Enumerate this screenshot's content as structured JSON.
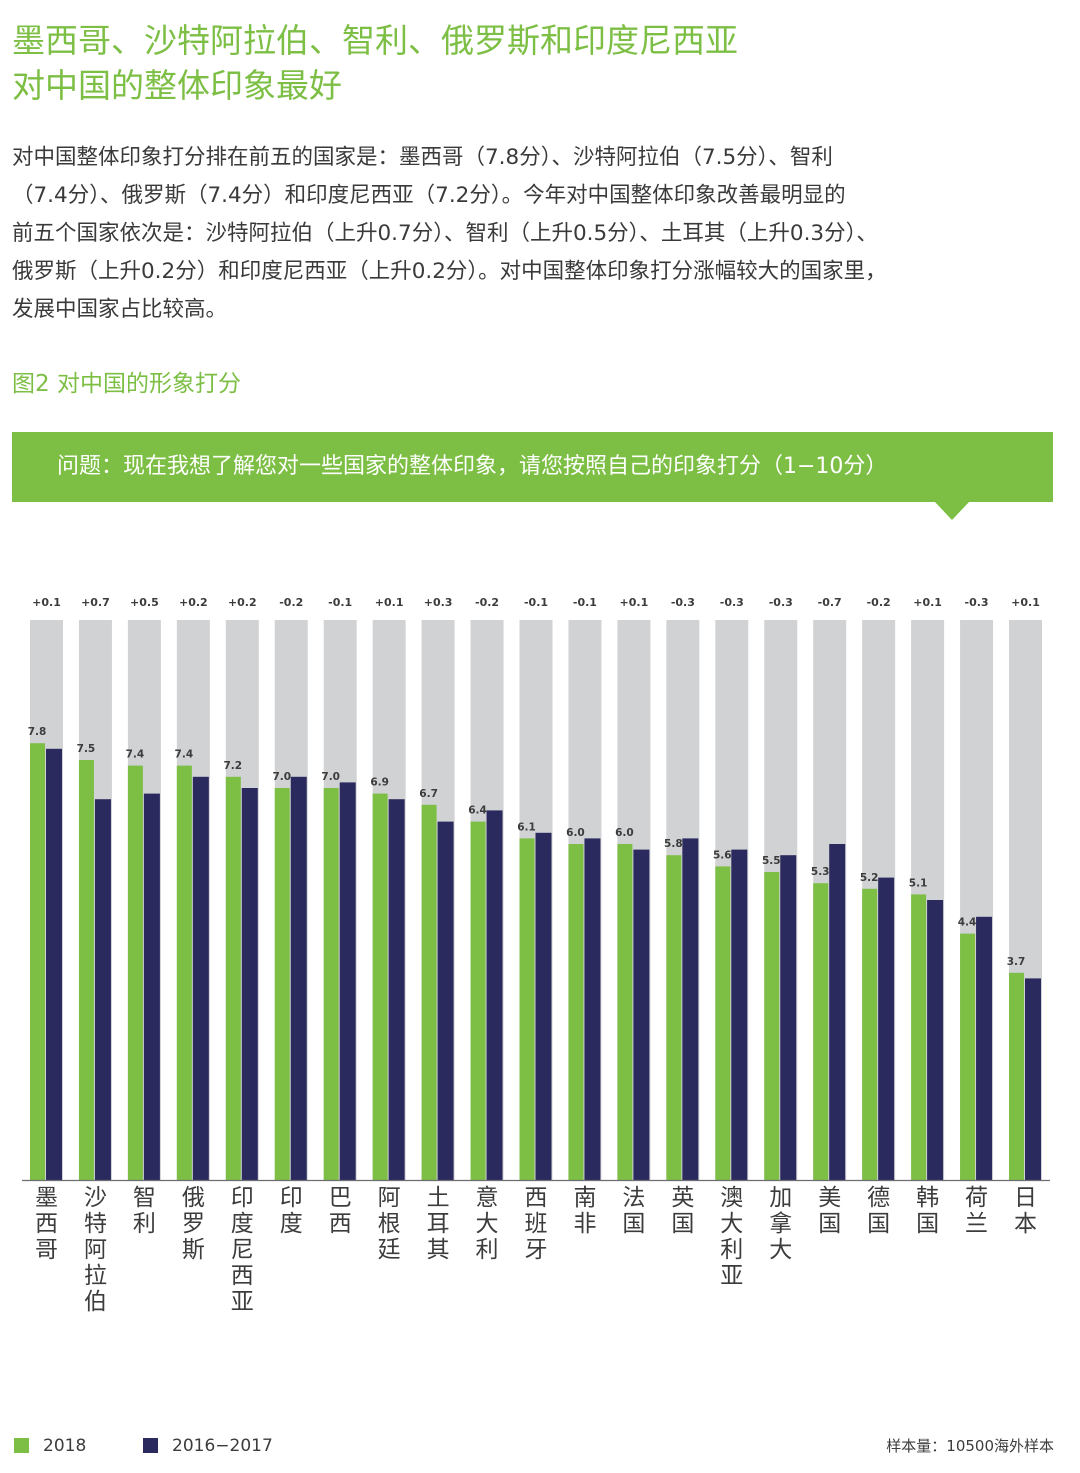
{
  "title": {
    "line1": "墨西哥、沙特阿拉伯、智利、俄罗斯和印度尼西亚",
    "line2": "对中国的整体印象最好"
  },
  "body": {
    "lines": [
      "对中国整体印象打分排在前五的国家是：墨西哥（7.8分）、沙特阿拉伯（7.5分）、智利",
      "（7.4分）、俄罗斯（7.4分）和印度尼西亚（7.2分）。今年对中国整体印象改善最明显的",
      "前五个国家依次是：沙特阿拉伯（上升0.7分）、智利（上升0.5分）、土耳其（上升0.3分）、",
      "俄罗斯（上升0.2分）和印度尼西亚（上升0.2分）。对中国整体印象打分涨幅较大的国家里，",
      "发展中国家占比较高。"
    ]
  },
  "figure_title": "图2 对中国的形象打分",
  "question": "问题：现在我想了解您对一些国家的整体印象，请您按照自己的印象打分（1−10分）",
  "colors": {
    "accent_green": "#7dbf45",
    "series_2018": "#7dbf45",
    "series_2016_2017": "#2b2a5e",
    "background_bar": "#d1d2d4"
  },
  "chart_data": {
    "type": "bar",
    "categories": [
      "墨西哥",
      "沙特阿拉伯",
      "智利",
      "俄罗斯",
      "印度尼西亚",
      "印度",
      "巴西",
      "阿根廷",
      "土耳其",
      "意大利",
      "西班牙",
      "南非",
      "法国",
      "英国",
      "澳大利亚",
      "加拿大",
      "美国",
      "德国",
      "韩国",
      "荷兰",
      "日本"
    ],
    "series": [
      {
        "name": "2018",
        "values": [
          7.8,
          7.5,
          7.4,
          7.4,
          7.2,
          7.0,
          7.0,
          6.9,
          6.7,
          6.4,
          6.1,
          6.0,
          6.0,
          5.8,
          5.6,
          5.5,
          5.3,
          5.2,
          5.1,
          4.4,
          3.7
        ]
      },
      {
        "name": "2016−2017",
        "values": [
          7.7,
          6.8,
          6.9,
          7.2,
          7.0,
          7.2,
          7.1,
          6.8,
          6.4,
          6.6,
          6.2,
          6.1,
          5.9,
          6.1,
          5.9,
          5.8,
          6.0,
          5.4,
          5.0,
          4.7,
          3.6
        ]
      }
    ],
    "change_labels": [
      "+0.1",
      "+0.7",
      "+0.5",
      "+0.2",
      "+0.2",
      "-0.2",
      "-0.1",
      "+0.1",
      "+0.3",
      "-0.2",
      "-0.1",
      "-0.1",
      "+0.1",
      "-0.3",
      "-0.3",
      "-0.3",
      "-0.7",
      "-0.2",
      "+0.1",
      "-0.3",
      "+0.1"
    ],
    "value_labels": [
      "7.8",
      "7.5",
      "7.4",
      "7.4",
      "7.2",
      "7.0",
      "7.0",
      "6.9",
      "6.7",
      "6.4",
      "6.1",
      "6.0",
      "6.0",
      "5.8",
      "5.6",
      "5.5",
      "5.3",
      "5.2",
      "5.1",
      "4.4",
      "3.7"
    ],
    "ylim": [
      0,
      10
    ],
    "grid": false,
    "legend_position": "bottom-left"
  },
  "legend": {
    "item1": "2018",
    "item2": "2016−2017"
  },
  "sample_note": "样本量：10500海外样本"
}
